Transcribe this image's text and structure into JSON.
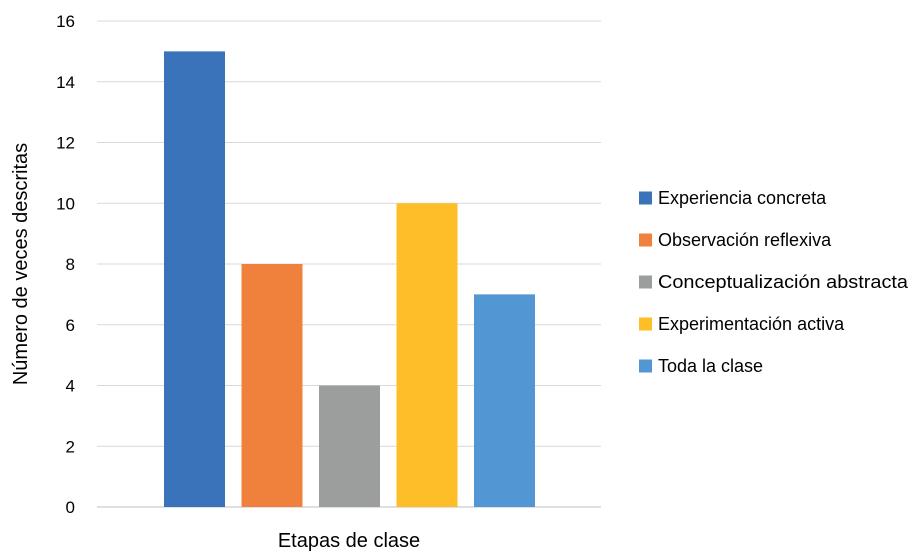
{
  "chart_data": {
    "type": "bar",
    "title": "",
    "xlabel": "Etapas de clase",
    "ylabel": "Número de veces descritas",
    "ylim": [
      0,
      16
    ],
    "yticks": [
      0,
      2,
      4,
      6,
      8,
      10,
      12,
      14,
      16
    ],
    "grid": true,
    "legend_position": "right",
    "series": [
      {
        "name": "Experiencia concreta",
        "value": 15,
        "color": "#3A73BA"
      },
      {
        "name": "Observación reflexiva",
        "value": 8,
        "color": "#F0813C"
      },
      {
        "name": "Conceptualización abstracta",
        "value": 4,
        "color": "#9C9E9E"
      },
      {
        "name": "Experimentación activa",
        "value": 10,
        "color": "#FDBE28"
      },
      {
        "name": "Toda la clase",
        "value": 7,
        "color": "#5297D3"
      }
    ]
  }
}
